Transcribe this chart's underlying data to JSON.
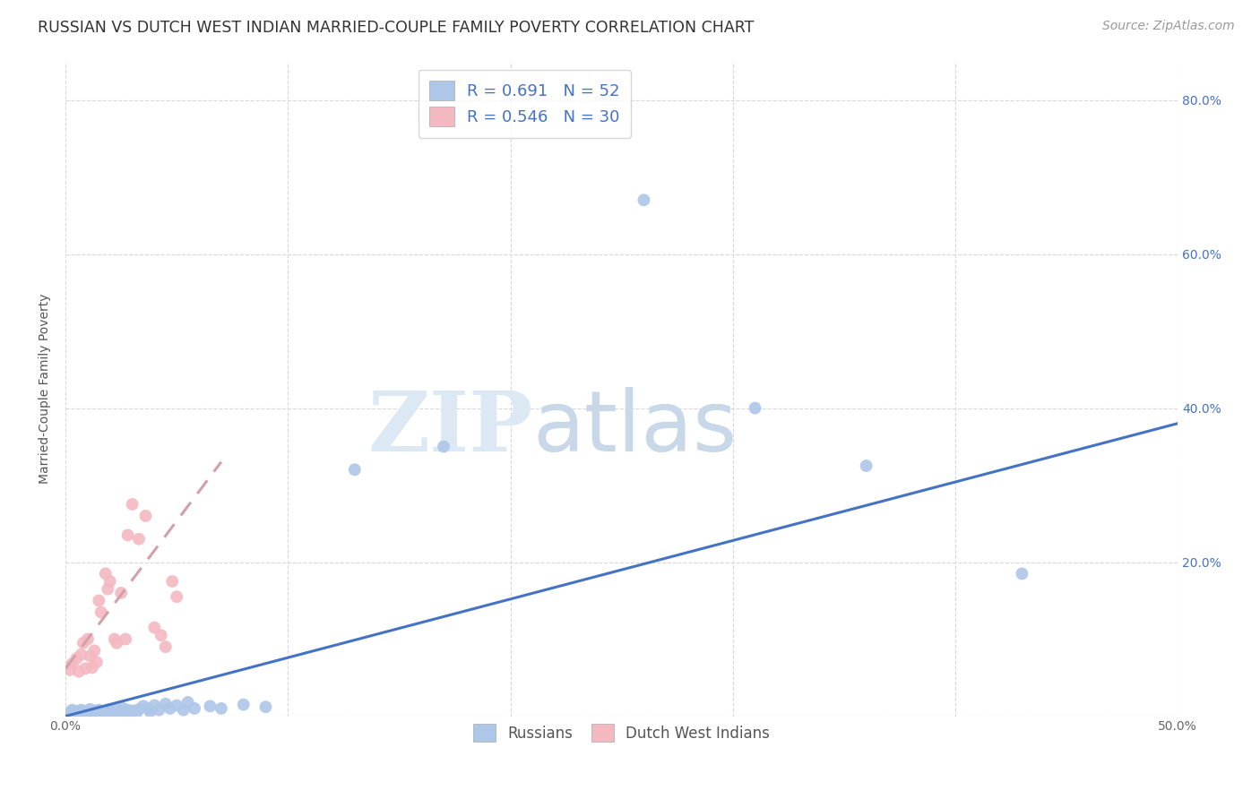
{
  "title": "RUSSIAN VS DUTCH WEST INDIAN MARRIED-COUPLE FAMILY POVERTY CORRELATION CHART",
  "source": "Source: ZipAtlas.com",
  "xlabel": "",
  "ylabel": "Married-Couple Family Poverty",
  "xlim": [
    0.0,
    0.5
  ],
  "ylim": [
    0.0,
    0.85
  ],
  "xticks": [
    0.0,
    0.1,
    0.2,
    0.3,
    0.4,
    0.5
  ],
  "xticklabels": [
    "0.0%",
    "",
    "",
    "",
    "",
    "50.0%"
  ],
  "yticks": [
    0.0,
    0.2,
    0.4,
    0.6,
    0.8
  ],
  "yticklabels_left": [
    "",
    "",
    "",
    "",
    ""
  ],
  "yticklabels_right": [
    "",
    "20.0%",
    "40.0%",
    "60.0%",
    "80.0%"
  ],
  "background_color": "#ffffff",
  "grid_color": "#d8d8d8",
  "russian_color": "#aec6e8",
  "dutch_color": "#f4b8c1",
  "russian_R": 0.691,
  "russian_N": 52,
  "dutch_R": 0.546,
  "dutch_N": 30,
  "legend_label_russian": "Russians",
  "legend_label_dutch": "Dutch West Indians",
  "watermark_zip": "ZIP",
  "watermark_atlas": "atlas",
  "russian_points": [
    [
      0.002,
      0.005
    ],
    [
      0.003,
      0.008
    ],
    [
      0.004,
      0.003
    ],
    [
      0.005,
      0.006
    ],
    [
      0.006,
      0.004
    ],
    [
      0.007,
      0.008
    ],
    [
      0.008,
      0.003
    ],
    [
      0.009,
      0.006
    ],
    [
      0.01,
      0.005
    ],
    [
      0.011,
      0.009
    ],
    [
      0.012,
      0.003
    ],
    [
      0.013,
      0.007
    ],
    [
      0.014,
      0.005
    ],
    [
      0.015,
      0.008
    ],
    [
      0.016,
      0.004
    ],
    [
      0.017,
      0.006
    ],
    [
      0.018,
      0.003
    ],
    [
      0.019,
      0.008
    ],
    [
      0.02,
      0.005
    ],
    [
      0.021,
      0.007
    ],
    [
      0.022,
      0.004
    ],
    [
      0.023,
      0.009
    ],
    [
      0.024,
      0.003
    ],
    [
      0.025,
      0.006
    ],
    [
      0.026,
      0.01
    ],
    [
      0.027,
      0.005
    ],
    [
      0.028,
      0.008
    ],
    [
      0.029,
      0.004
    ],
    [
      0.03,
      0.007
    ],
    [
      0.032,
      0.005
    ],
    [
      0.033,
      0.009
    ],
    [
      0.035,
      0.013
    ],
    [
      0.037,
      0.01
    ],
    [
      0.038,
      0.006
    ],
    [
      0.04,
      0.014
    ],
    [
      0.042,
      0.008
    ],
    [
      0.045,
      0.016
    ],
    [
      0.047,
      0.01
    ],
    [
      0.05,
      0.014
    ],
    [
      0.053,
      0.008
    ],
    [
      0.055,
      0.018
    ],
    [
      0.058,
      0.01
    ],
    [
      0.065,
      0.013
    ],
    [
      0.07,
      0.01
    ],
    [
      0.08,
      0.015
    ],
    [
      0.09,
      0.012
    ],
    [
      0.13,
      0.32
    ],
    [
      0.17,
      0.35
    ],
    [
      0.26,
      0.67
    ],
    [
      0.31,
      0.4
    ],
    [
      0.36,
      0.325
    ],
    [
      0.43,
      0.185
    ]
  ],
  "dutch_points": [
    [
      0.002,
      0.06
    ],
    [
      0.003,
      0.068
    ],
    [
      0.005,
      0.075
    ],
    [
      0.006,
      0.058
    ],
    [
      0.007,
      0.08
    ],
    [
      0.008,
      0.095
    ],
    [
      0.009,
      0.062
    ],
    [
      0.01,
      0.1
    ],
    [
      0.011,
      0.078
    ],
    [
      0.012,
      0.063
    ],
    [
      0.013,
      0.085
    ],
    [
      0.014,
      0.07
    ],
    [
      0.015,
      0.15
    ],
    [
      0.016,
      0.135
    ],
    [
      0.018,
      0.185
    ],
    [
      0.019,
      0.165
    ],
    [
      0.02,
      0.175
    ],
    [
      0.022,
      0.1
    ],
    [
      0.023,
      0.095
    ],
    [
      0.025,
      0.16
    ],
    [
      0.027,
      0.1
    ],
    [
      0.028,
      0.235
    ],
    [
      0.03,
      0.275
    ],
    [
      0.033,
      0.23
    ],
    [
      0.036,
      0.26
    ],
    [
      0.04,
      0.115
    ],
    [
      0.043,
      0.105
    ],
    [
      0.045,
      0.09
    ],
    [
      0.048,
      0.175
    ],
    [
      0.05,
      0.155
    ]
  ],
  "russian_line_color": "#4472c4",
  "dutch_line_color": "#d4a0a8",
  "russian_line_x": [
    0.0,
    0.5
  ],
  "russian_line_y": [
    0.0,
    0.38
  ],
  "dutch_line_x": [
    0.0,
    0.07
  ],
  "dutch_line_y": [
    0.062,
    0.33
  ],
  "title_fontsize": 12.5,
  "axis_label_fontsize": 10,
  "tick_label_color_x": "#666666",
  "tick_label_color_y": "#4472c4",
  "source_fontsize": 10,
  "legend_fontsize": 13
}
